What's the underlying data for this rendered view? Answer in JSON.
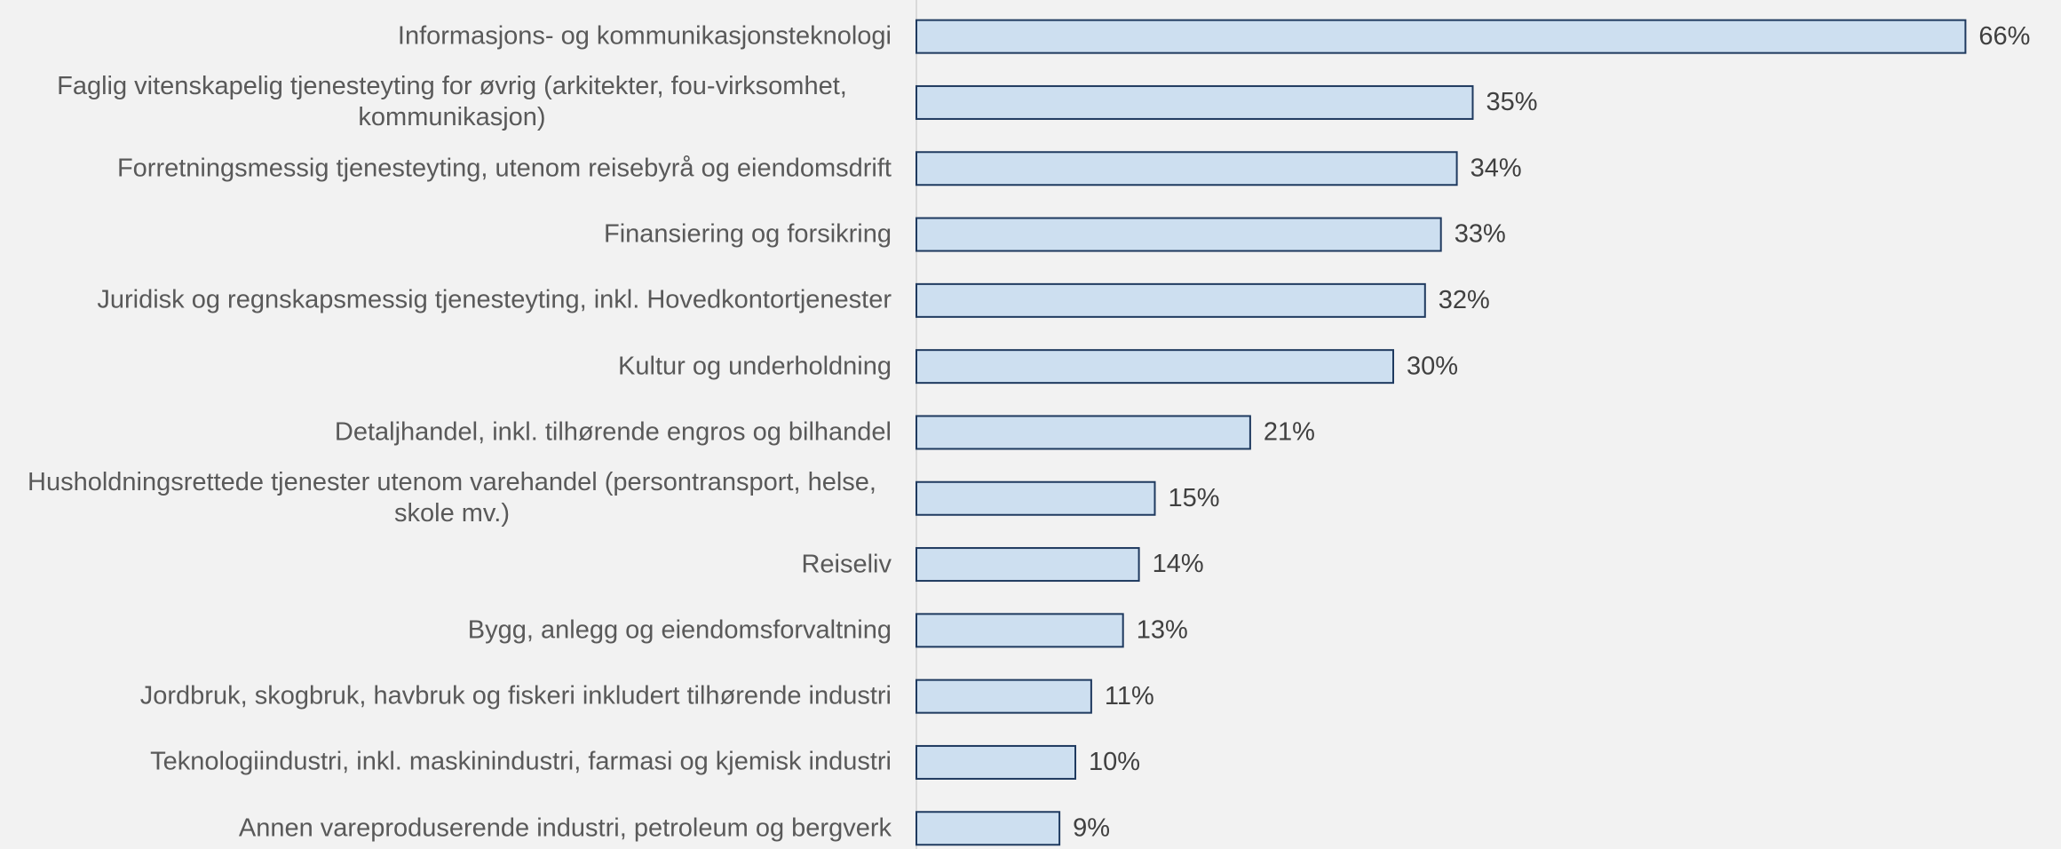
{
  "chart_data": {
    "type": "bar",
    "orientation": "horizontal",
    "categories": [
      "Informasjons- og kommunikasjonsteknologi",
      "Faglig vitenskapelig tjenesteyting for øvrig (arkitekter, fou-virksomhet, kommunikasjon)",
      "Forretningsmessig tjenesteyting, utenom reisebyrå og eiendomsdrift",
      "Finansiering og forsikring",
      "Juridisk og regnskapsmessig tjenesteyting, inkl. Hovedkontortjenester",
      "Kultur og underholdning",
      "Detaljhandel, inkl. tilhørende engros og bilhandel",
      "Husholdningsrettede tjenester utenom varehandel (persontransport, helse, skole mv.)",
      "Reiseliv",
      "Bygg, anlegg og eiendomsforvaltning",
      "Jordbruk, skogbruk, havbruk og fiskeri inkludert tilhørende industri",
      "Teknologiindustri, inkl. maskinindustri, farmasi og kjemisk industri",
      "Annen vareproduserende industri, petroleum og bergverk"
    ],
    "values": [
      66,
      35,
      34,
      33,
      32,
      30,
      21,
      15,
      14,
      13,
      11,
      10,
      9
    ],
    "value_labels": [
      "66%",
      "35%",
      "34%",
      "33%",
      "32%",
      "30%",
      "21%",
      "15%",
      "14%",
      "13%",
      "11%",
      "10%",
      "9%"
    ],
    "color": "#cddff0",
    "edge_color": "#1f3a5f",
    "xlim": [
      0,
      70
    ]
  }
}
